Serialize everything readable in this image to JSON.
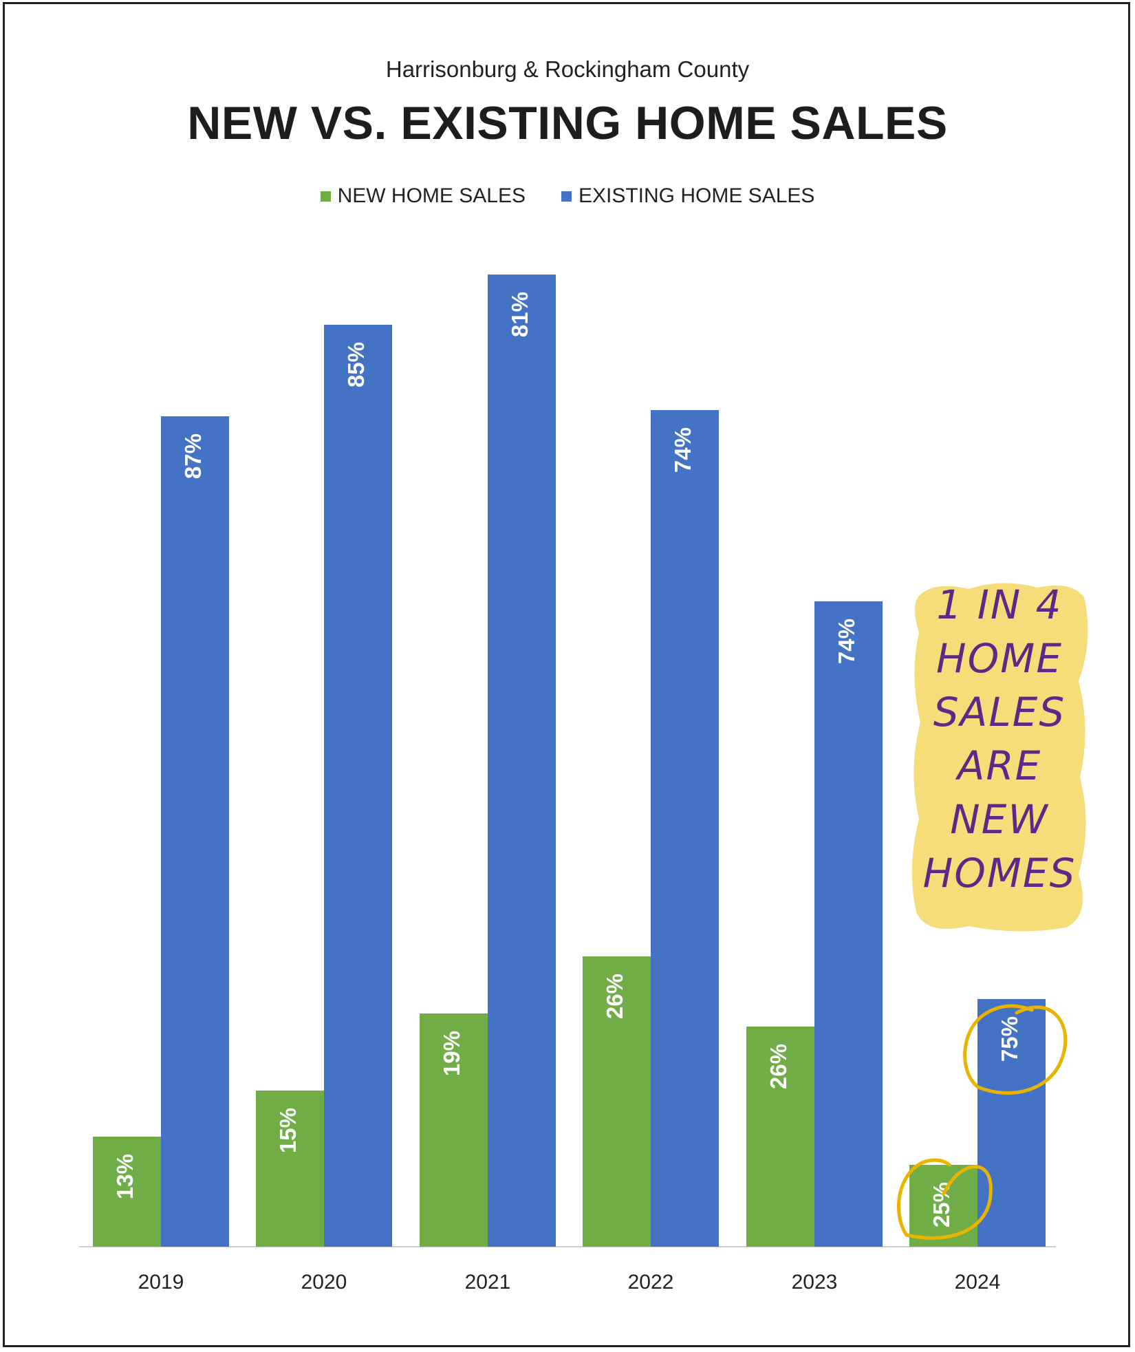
{
  "chart_data": {
    "type": "bar",
    "subtitle": "Harrisonburg & Rockingham County",
    "title": "NEW VS. EXISTING HOME SALES",
    "categories": [
      "2019",
      "2020",
      "2021",
      "2022",
      "2023",
      "2024"
    ],
    "series": [
      {
        "name": "NEW HOME SALES",
        "color": "#70ad47",
        "values": [
          13,
          15,
          19,
          26,
          26,
          25
        ]
      },
      {
        "name": "EXISTING HOME SALES",
        "color": "#4472c4",
        "values": [
          87,
          85,
          81,
          74,
          74,
          75
        ]
      }
    ],
    "bar_heights": {
      "NEW HOME SALES": [
        160,
        227,
        339,
        422,
        320,
        119
      ],
      "EXISTING HOME SALES": [
        1207,
        1340,
        1413,
        1216,
        938,
        360
      ]
    },
    "data_label_suffix": "%",
    "legend_position": "top",
    "grid": false,
    "annotation": {
      "lines": [
        "1 IN 4",
        "HOME",
        "SALES",
        "ARE",
        "NEW",
        "HOMES"
      ],
      "highlight_color": "#f7dc7a",
      "text_color": "#5b2a86",
      "circle_color": "#e8b400",
      "circled": [
        "2024 NEW HOME SALES",
        "2024 EXISTING HOME SALES"
      ]
    }
  }
}
